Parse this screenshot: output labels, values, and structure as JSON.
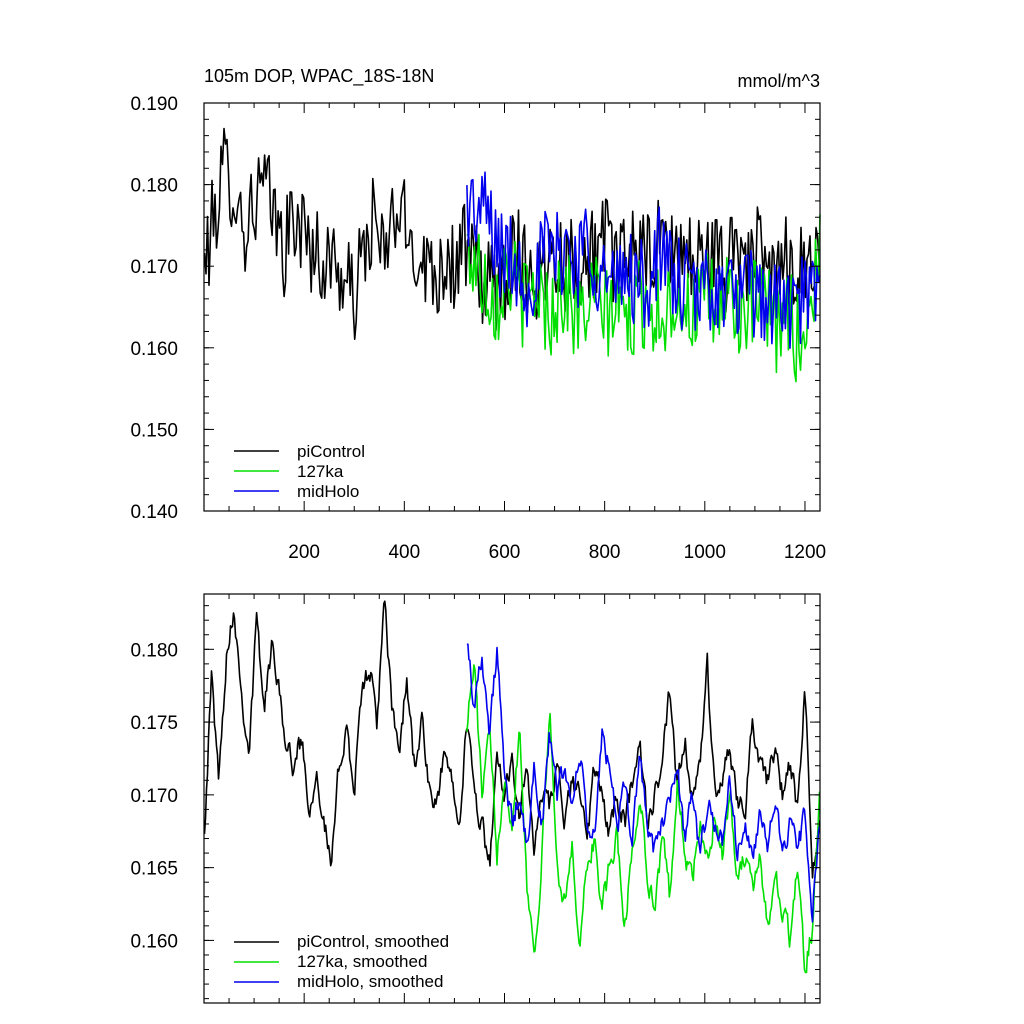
{
  "chart_data": [
    {
      "type": "line",
      "title": "105m DOP, WPAC_18S-18N",
      "units": "mmol/m^3",
      "xlim": [
        0,
        1230
      ],
      "ylim": [
        0.14,
        0.19
      ],
      "x_ticks": [
        200,
        400,
        600,
        800,
        1000,
        1200
      ],
      "x_tick_labels": [
        "200",
        "400",
        "600",
        "800",
        "1000",
        "1200"
      ],
      "y_ticks": [
        0.14,
        0.15,
        0.16,
        0.17,
        0.18,
        0.19
      ],
      "y_tick_labels": [
        "0.140",
        "0.150",
        "0.160",
        "0.170",
        "0.180",
        "0.190"
      ],
      "legend_position": "bottom-left",
      "series": [
        {
          "name": "piControl",
          "legend_label": "piControl",
          "color": "#000000",
          "x_start": 1,
          "x_end": 1230,
          "x": [
            1,
            20,
            40,
            60,
            80,
            100,
            120,
            140,
            160,
            180,
            200,
            220,
            240,
            260,
            280,
            300,
            320,
            340,
            360,
            380,
            400,
            420,
            440,
            460,
            480,
            500,
            520,
            540,
            560,
            580,
            600,
            620,
            640,
            660,
            680,
            700,
            720,
            740,
            760,
            780,
            800,
            820,
            840,
            860,
            880,
            900,
            920,
            940,
            960,
            980,
            1000,
            1020,
            1040,
            1060,
            1080,
            1100,
            1120,
            1140,
            1160,
            1180,
            1200,
            1220,
            1230
          ],
          "y": [
            0.17,
            0.176,
            0.182,
            0.18,
            0.174,
            0.178,
            0.18,
            0.176,
            0.172,
            0.176,
            0.174,
            0.172,
            0.17,
            0.171,
            0.168,
            0.166,
            0.172,
            0.176,
            0.17,
            0.177,
            0.175,
            0.172,
            0.171,
            0.169,
            0.171,
            0.17,
            0.172,
            0.17,
            0.168,
            0.167,
            0.169,
            0.172,
            0.171,
            0.168,
            0.17,
            0.173,
            0.17,
            0.171,
            0.17,
            0.172,
            0.173,
            0.171,
            0.17,
            0.174,
            0.17,
            0.172,
            0.173,
            0.171,
            0.172,
            0.17,
            0.172,
            0.171,
            0.169,
            0.174,
            0.171,
            0.172,
            0.17,
            0.168,
            0.171,
            0.17,
            0.171,
            0.17,
            0.172
          ]
        },
        {
          "name": "127ka",
          "legend_label": "127ka",
          "color": "#00e000",
          "x_start": 525,
          "x_end": 1230,
          "x": [
            525,
            545,
            565,
            585,
            605,
            625,
            645,
            665,
            685,
            705,
            725,
            745,
            765,
            785,
            805,
            825,
            845,
            865,
            885,
            905,
            925,
            945,
            965,
            985,
            1005,
            1025,
            1045,
            1065,
            1085,
            1105,
            1125,
            1145,
            1165,
            1185,
            1205,
            1230
          ],
          "y": [
            0.172,
            0.17,
            0.168,
            0.166,
            0.17,
            0.167,
            0.165,
            0.168,
            0.164,
            0.166,
            0.167,
            0.163,
            0.165,
            0.166,
            0.164,
            0.166,
            0.163,
            0.165,
            0.166,
            0.164,
            0.165,
            0.167,
            0.164,
            0.165,
            0.166,
            0.164,
            0.167,
            0.165,
            0.163,
            0.166,
            0.164,
            0.162,
            0.165,
            0.161,
            0.163,
            0.172
          ]
        },
        {
          "name": "midHolo",
          "legend_label": "midHolo",
          "color": "#0000ee",
          "x_start": 525,
          "x_end": 1230,
          "x": [
            525,
            545,
            565,
            585,
            605,
            625,
            645,
            665,
            685,
            705,
            725,
            745,
            765,
            785,
            805,
            825,
            845,
            865,
            885,
            905,
            925,
            945,
            965,
            985,
            1005,
            1025,
            1045,
            1065,
            1085,
            1105,
            1125,
            1145,
            1165,
            1185,
            1205,
            1230
          ],
          "y": [
            0.178,
            0.176,
            0.177,
            0.172,
            0.171,
            0.17,
            0.168,
            0.17,
            0.172,
            0.171,
            0.173,
            0.17,
            0.174,
            0.17,
            0.168,
            0.167,
            0.17,
            0.168,
            0.167,
            0.172,
            0.17,
            0.168,
            0.167,
            0.166,
            0.168,
            0.167,
            0.166,
            0.167,
            0.166,
            0.167,
            0.165,
            0.166,
            0.164,
            0.166,
            0.165,
            0.168
          ]
        }
      ]
    },
    {
      "type": "line",
      "title": "",
      "xlim": [
        0,
        1230
      ],
      "ylim": [
        0.1557,
        0.1838
      ],
      "y_ticks": [
        0.16,
        0.165,
        0.17,
        0.175,
        0.18
      ],
      "y_tick_labels": [
        "0.160",
        "0.165",
        "0.170",
        "0.175",
        "0.180"
      ],
      "x_ticks": [
        200,
        400,
        600,
        800,
        1000,
        1200
      ],
      "legend_position": "bottom-left",
      "series": [
        {
          "name": "piControl, smoothed",
          "legend_label": "piControl, smoothed",
          "color": "#000000",
          "x": [
            1,
            15,
            30,
            45,
            60,
            75,
            90,
            105,
            120,
            135,
            150,
            165,
            180,
            195,
            210,
            225,
            240,
            255,
            270,
            285,
            300,
            315,
            330,
            345,
            360,
            375,
            390,
            405,
            420,
            435,
            450,
            465,
            480,
            495,
            510,
            525,
            540,
            555,
            570,
            585,
            600,
            615,
            630,
            645,
            660,
            675,
            690,
            705,
            720,
            735,
            750,
            765,
            780,
            795,
            810,
            825,
            840,
            855,
            870,
            885,
            900,
            915,
            930,
            945,
            960,
            975,
            990,
            1005,
            1020,
            1035,
            1050,
            1065,
            1080,
            1095,
            1110,
            1125,
            1140,
            1155,
            1170,
            1185,
            1200,
            1215,
            1230
          ],
          "y": [
            0.168,
            0.178,
            0.171,
            0.18,
            0.183,
            0.177,
            0.173,
            0.182,
            0.176,
            0.18,
            0.178,
            0.173,
            0.172,
            0.174,
            0.169,
            0.172,
            0.168,
            0.165,
            0.172,
            0.175,
            0.17,
            0.177,
            0.179,
            0.175,
            0.183,
            0.176,
            0.173,
            0.178,
            0.172,
            0.175,
            0.17,
            0.169,
            0.173,
            0.171,
            0.169,
            0.175,
            0.17,
            0.168,
            0.165,
            0.172,
            0.17,
            0.173,
            0.168,
            0.172,
            0.166,
            0.17,
            0.169,
            0.172,
            0.168,
            0.171,
            0.17,
            0.167,
            0.172,
            0.17,
            0.167,
            0.17,
            0.168,
            0.171,
            0.174,
            0.168,
            0.17,
            0.172,
            0.177,
            0.17,
            0.174,
            0.169,
            0.172,
            0.179,
            0.17,
            0.171,
            0.173,
            0.17,
            0.169,
            0.175,
            0.172,
            0.171,
            0.173,
            0.17,
            0.172,
            0.169,
            0.177,
            0.165,
            0.168
          ]
        },
        {
          "name": "127ka, smoothed",
          "legend_label": "127ka, smoothed",
          "color": "#00e000",
          "x": [
            525,
            540,
            555,
            570,
            585,
            600,
            615,
            630,
            645,
            660,
            675,
            690,
            705,
            720,
            735,
            750,
            765,
            780,
            795,
            810,
            825,
            840,
            855,
            870,
            885,
            900,
            915,
            930,
            945,
            960,
            975,
            990,
            1005,
            1020,
            1035,
            1050,
            1065,
            1080,
            1095,
            1110,
            1125,
            1140,
            1155,
            1170,
            1185,
            1200,
            1215,
            1230
          ],
          "y": [
            0.175,
            0.179,
            0.17,
            0.174,
            0.166,
            0.172,
            0.168,
            0.175,
            0.164,
            0.159,
            0.166,
            0.176,
            0.165,
            0.163,
            0.166,
            0.16,
            0.165,
            0.167,
            0.162,
            0.165,
            0.167,
            0.161,
            0.166,
            0.17,
            0.165,
            0.162,
            0.167,
            0.163,
            0.171,
            0.166,
            0.164,
            0.168,
            0.165,
            0.169,
            0.166,
            0.17,
            0.164,
            0.166,
            0.163,
            0.166,
            0.161,
            0.165,
            0.162,
            0.16,
            0.165,
            0.158,
            0.161,
            0.17
          ]
        },
        {
          "name": "midHolo, smoothed",
          "legend_label": "midHolo, smoothed",
          "color": "#0000ee",
          "x": [
            525,
            540,
            555,
            570,
            585,
            600,
            615,
            630,
            645,
            660,
            675,
            690,
            705,
            720,
            735,
            750,
            765,
            780,
            795,
            810,
            825,
            840,
            855,
            870,
            885,
            900,
            915,
            930,
            945,
            960,
            975,
            990,
            1005,
            1020,
            1035,
            1050,
            1065,
            1080,
            1095,
            1110,
            1125,
            1140,
            1155,
            1170,
            1185,
            1200,
            1215,
            1230
          ],
          "y": [
            0.181,
            0.176,
            0.18,
            0.174,
            0.18,
            0.171,
            0.168,
            0.17,
            0.166,
            0.172,
            0.168,
            0.174,
            0.17,
            0.172,
            0.169,
            0.173,
            0.168,
            0.167,
            0.174,
            0.172,
            0.168,
            0.17,
            0.167,
            0.173,
            0.168,
            0.166,
            0.168,
            0.17,
            0.172,
            0.167,
            0.17,
            0.166,
            0.169,
            0.168,
            0.167,
            0.171,
            0.166,
            0.168,
            0.165,
            0.169,
            0.167,
            0.17,
            0.165,
            0.168,
            0.166,
            0.169,
            0.162,
            0.168
          ]
        }
      ]
    }
  ]
}
